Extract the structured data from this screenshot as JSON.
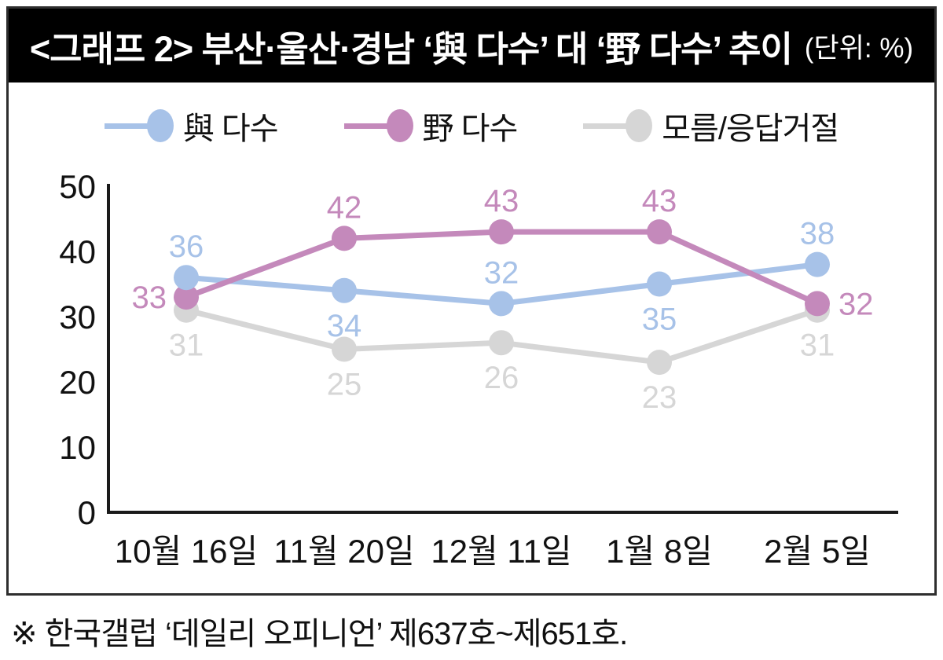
{
  "header": {
    "title": "<그래프 2> 부산·울산·경남 ‘與 다수’ 대 ‘野 다수’ 추이",
    "unit": "(단위: %)"
  },
  "footer": {
    "text": "※ 한국갤럽 ‘데일리 오피니언’ 제637호~제651호."
  },
  "colors": {
    "title_bg": "#000000",
    "title_text": "#ffffff",
    "axis": "#1a1a1a",
    "card_border": "#2e2e2e"
  },
  "chart_data": {
    "type": "line",
    "categories": [
      "10월 16일",
      "11월 20일",
      "12월 11일",
      "1월 8일",
      "2월 5일"
    ],
    "series": [
      {
        "name": "與 다수",
        "color": "#a7c2e8",
        "values": [
          36,
          34,
          32,
          35,
          38
        ],
        "label_placement": [
          "above",
          "below",
          "above",
          "below",
          "above"
        ]
      },
      {
        "name": "野 다수",
        "color": "#c489bb",
        "values": [
          33,
          42,
          43,
          43,
          32
        ],
        "label_placement": [
          "left",
          "above",
          "above",
          "above",
          "right"
        ]
      },
      {
        "name": "모름/응답거절",
        "color": "#d6d6d6",
        "values": [
          31,
          25,
          26,
          23,
          31
        ],
        "label_placement": [
          "below",
          "below",
          "below",
          "below",
          "below"
        ]
      }
    ],
    "ylim": [
      0,
      50
    ],
    "yticks": [
      0,
      10,
      20,
      30,
      40,
      50
    ],
    "legend_position": "top",
    "grid": false,
    "data_labels": true
  }
}
